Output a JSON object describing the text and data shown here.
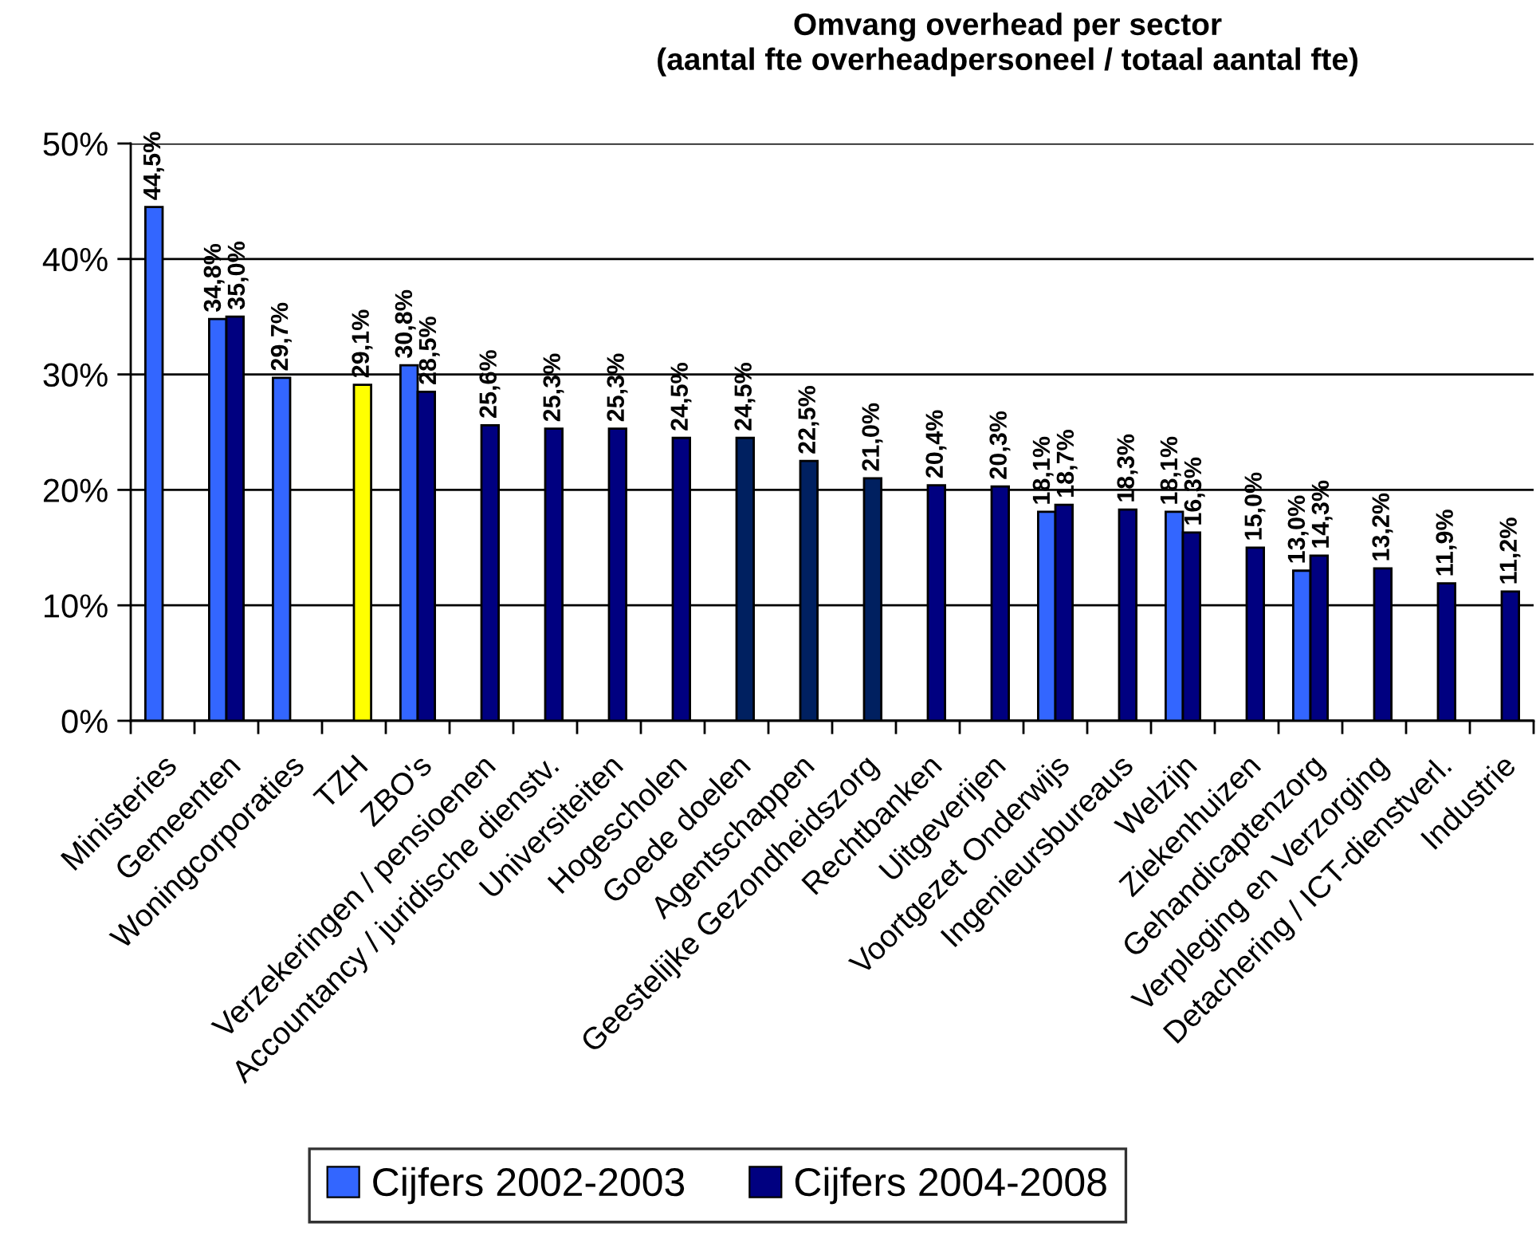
{
  "chart_data": {
    "type": "bar",
    "title": "Omvang overhead per sector",
    "subtitle": "(aantal fte overheadpersoneel / totaal aantal fte)",
    "categories": [
      "Ministeries",
      "Gemeenten",
      "Woningcorporaties",
      "TZH",
      "ZBO's",
      "Verzekeringen / pensioenen",
      "Accountancy / juridische dienstv.",
      "Universiteiten",
      "Hogescholen",
      "Goede doelen",
      "Agentschappen",
      "Geestelijke Gezondheidszorg",
      "Rechtbanken",
      "Uitgeverijen",
      "Voortgezet Onderwijs",
      "Ingenieursbureaus",
      "Welzijn",
      "Ziekenhuizen",
      "Gehandicaptenzorg",
      "Verpleging en Verzorging",
      "Detachering / ICT-dienstverl.",
      "Industrie"
    ],
    "series": [
      {
        "name": "Cijfers 2002-2003",
        "color": "#3366ff",
        "values": [
          44.5,
          34.8,
          29.7,
          null,
          30.8,
          null,
          null,
          null,
          null,
          null,
          null,
          null,
          null,
          null,
          18.1,
          null,
          18.1,
          null,
          13.0,
          null,
          null,
          null
        ],
        "value_labels": [
          "44,5%",
          "34,8%",
          "29,7%",
          null,
          "30,8%",
          null,
          null,
          null,
          null,
          null,
          null,
          null,
          null,
          null,
          "18,1%",
          null,
          "18,1%",
          null,
          "13,0%",
          null,
          null,
          null
        ]
      },
      {
        "name": "Cijfers 2004-2008",
        "color": "#000080",
        "colors": [
          null,
          "#000080",
          null,
          "#ffff00",
          "#000080",
          "#000080",
          "#000080",
          "#000080",
          "#000080",
          "#002060",
          "#002060",
          "#002060",
          "#000080",
          "#000080",
          "#000080",
          "#000080",
          "#000080",
          "#000080",
          "#000080",
          "#000080",
          "#000080",
          "#000080"
        ],
        "values": [
          null,
          35.0,
          null,
          29.1,
          28.5,
          25.6,
          25.3,
          25.3,
          24.5,
          24.5,
          22.5,
          21.0,
          20.4,
          20.3,
          18.7,
          18.3,
          16.3,
          15.0,
          14.3,
          13.2,
          11.9,
          11.2
        ],
        "value_labels": [
          null,
          "35,0%",
          null,
          "29,1%",
          "28,5%",
          "25,6%",
          "25,3%",
          "25,3%",
          "24,5%",
          "24,5%",
          "22,5%",
          "21,0%",
          "20,4%",
          "20,3%",
          "18,7%",
          "18,3%",
          "16,3%",
          "15,0%",
          "14,3%",
          "13,2%",
          "11,9%",
          "11,2%"
        ]
      }
    ],
    "ylim": [
      0,
      50
    ],
    "yticks": [
      {
        "value": 0,
        "label": "0%"
      },
      {
        "value": 10,
        "label": "10%"
      },
      {
        "value": 20,
        "label": "20%"
      },
      {
        "value": 30,
        "label": "30%"
      },
      {
        "value": 40,
        "label": "40%"
      },
      {
        "value": 50,
        "label": "50%"
      }
    ],
    "grid": "y",
    "legend": "bottom"
  }
}
